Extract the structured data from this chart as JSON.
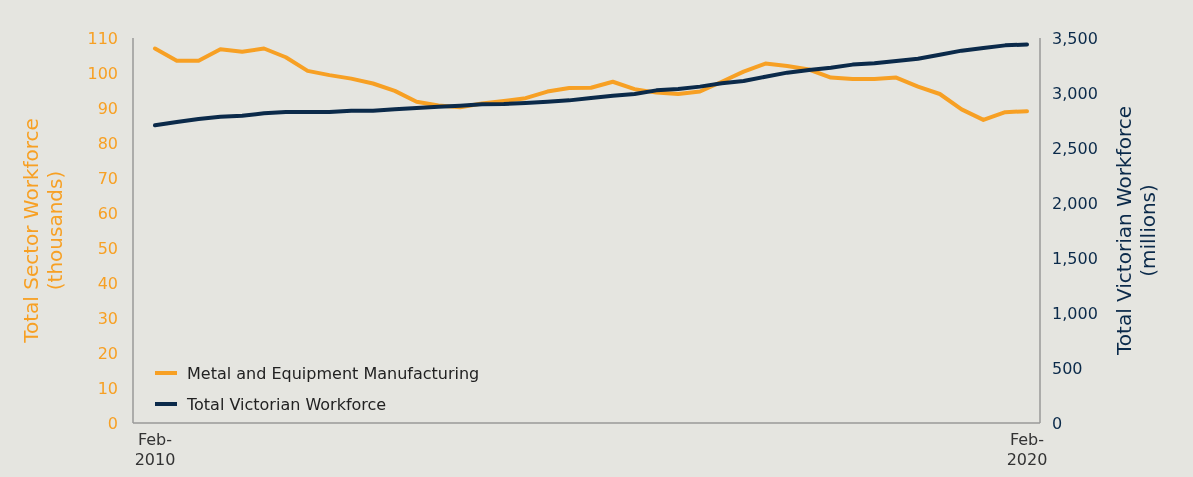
{
  "chart_data": {
    "type": "line",
    "ylabel": "Total Sector Workforce\n(thousands)",
    "y2label": "Total Victorian Workforce\n(millions)",
    "categories": [
      "Feb-2010",
      null,
      null,
      null,
      null,
      null,
      null,
      null,
      null,
      null,
      null,
      null,
      null,
      null,
      null,
      null,
      null,
      null,
      null,
      null,
      null,
      null,
      null,
      null,
      null,
      null,
      null,
      null,
      null,
      null,
      null,
      null,
      null,
      null,
      null,
      null,
      null,
      null,
      null,
      null,
      "Feb-2020"
    ],
    "series": [
      {
        "name": "Metal and Equipment Manufacturing",
        "color": "#f7a024",
        "values": [
          107,
          103.5,
          103.5,
          106.8,
          106.1,
          107,
          104.5,
          100.6,
          99.4,
          98.4,
          97,
          94.9,
          91.8,
          90.7,
          90.2,
          91.3,
          92,
          92.8,
          94.7,
          95.7,
          95.8,
          97.5,
          95.4,
          94.4,
          94,
          94.7,
          97.5,
          100.4,
          102.7,
          102,
          101,
          98.7,
          98.3,
          98.3,
          98.7,
          96.1,
          94,
          89.6,
          86.6,
          88.8,
          89.1
        ]
      },
      {
        "name": "Total Victorian Workforce",
        "color": "#0b2a4a",
        "axis": "y2",
        "values": [
          2706,
          2736,
          2764,
          2785,
          2794,
          2815,
          2827,
          2827,
          2827,
          2839,
          2839,
          2852,
          2864,
          2876,
          2885,
          2897,
          2900,
          2909,
          2921,
          2933,
          2955,
          2976,
          2991,
          3024,
          3036,
          3058,
          3088,
          3109,
          3148,
          3185,
          3209,
          3230,
          3258,
          3270,
          3291,
          3312,
          3348,
          3385,
          3409,
          3433,
          3442
        ]
      }
    ],
    "ylim": [
      0,
      110
    ],
    "yticks": [
      0,
      10,
      20,
      30,
      40,
      50,
      60,
      70,
      80,
      90,
      100,
      110
    ],
    "y2lim": [
      0,
      3500
    ],
    "y2ticks": [
      0,
      500,
      {
        "value": 1000,
        "label": "1,000"
      },
      {
        "value": 1500,
        "label": "1,500"
      },
      {
        "value": 2000,
        "label": "2,000"
      },
      {
        "value": 2500,
        "label": "2,500"
      },
      {
        "value": 3000,
        "label": "3,000"
      },
      {
        "value": 3500,
        "label": "3,500"
      }
    ],
    "legend": "bottom left",
    "grid": false,
    "marker": "none",
    "line_style": "solid"
  }
}
